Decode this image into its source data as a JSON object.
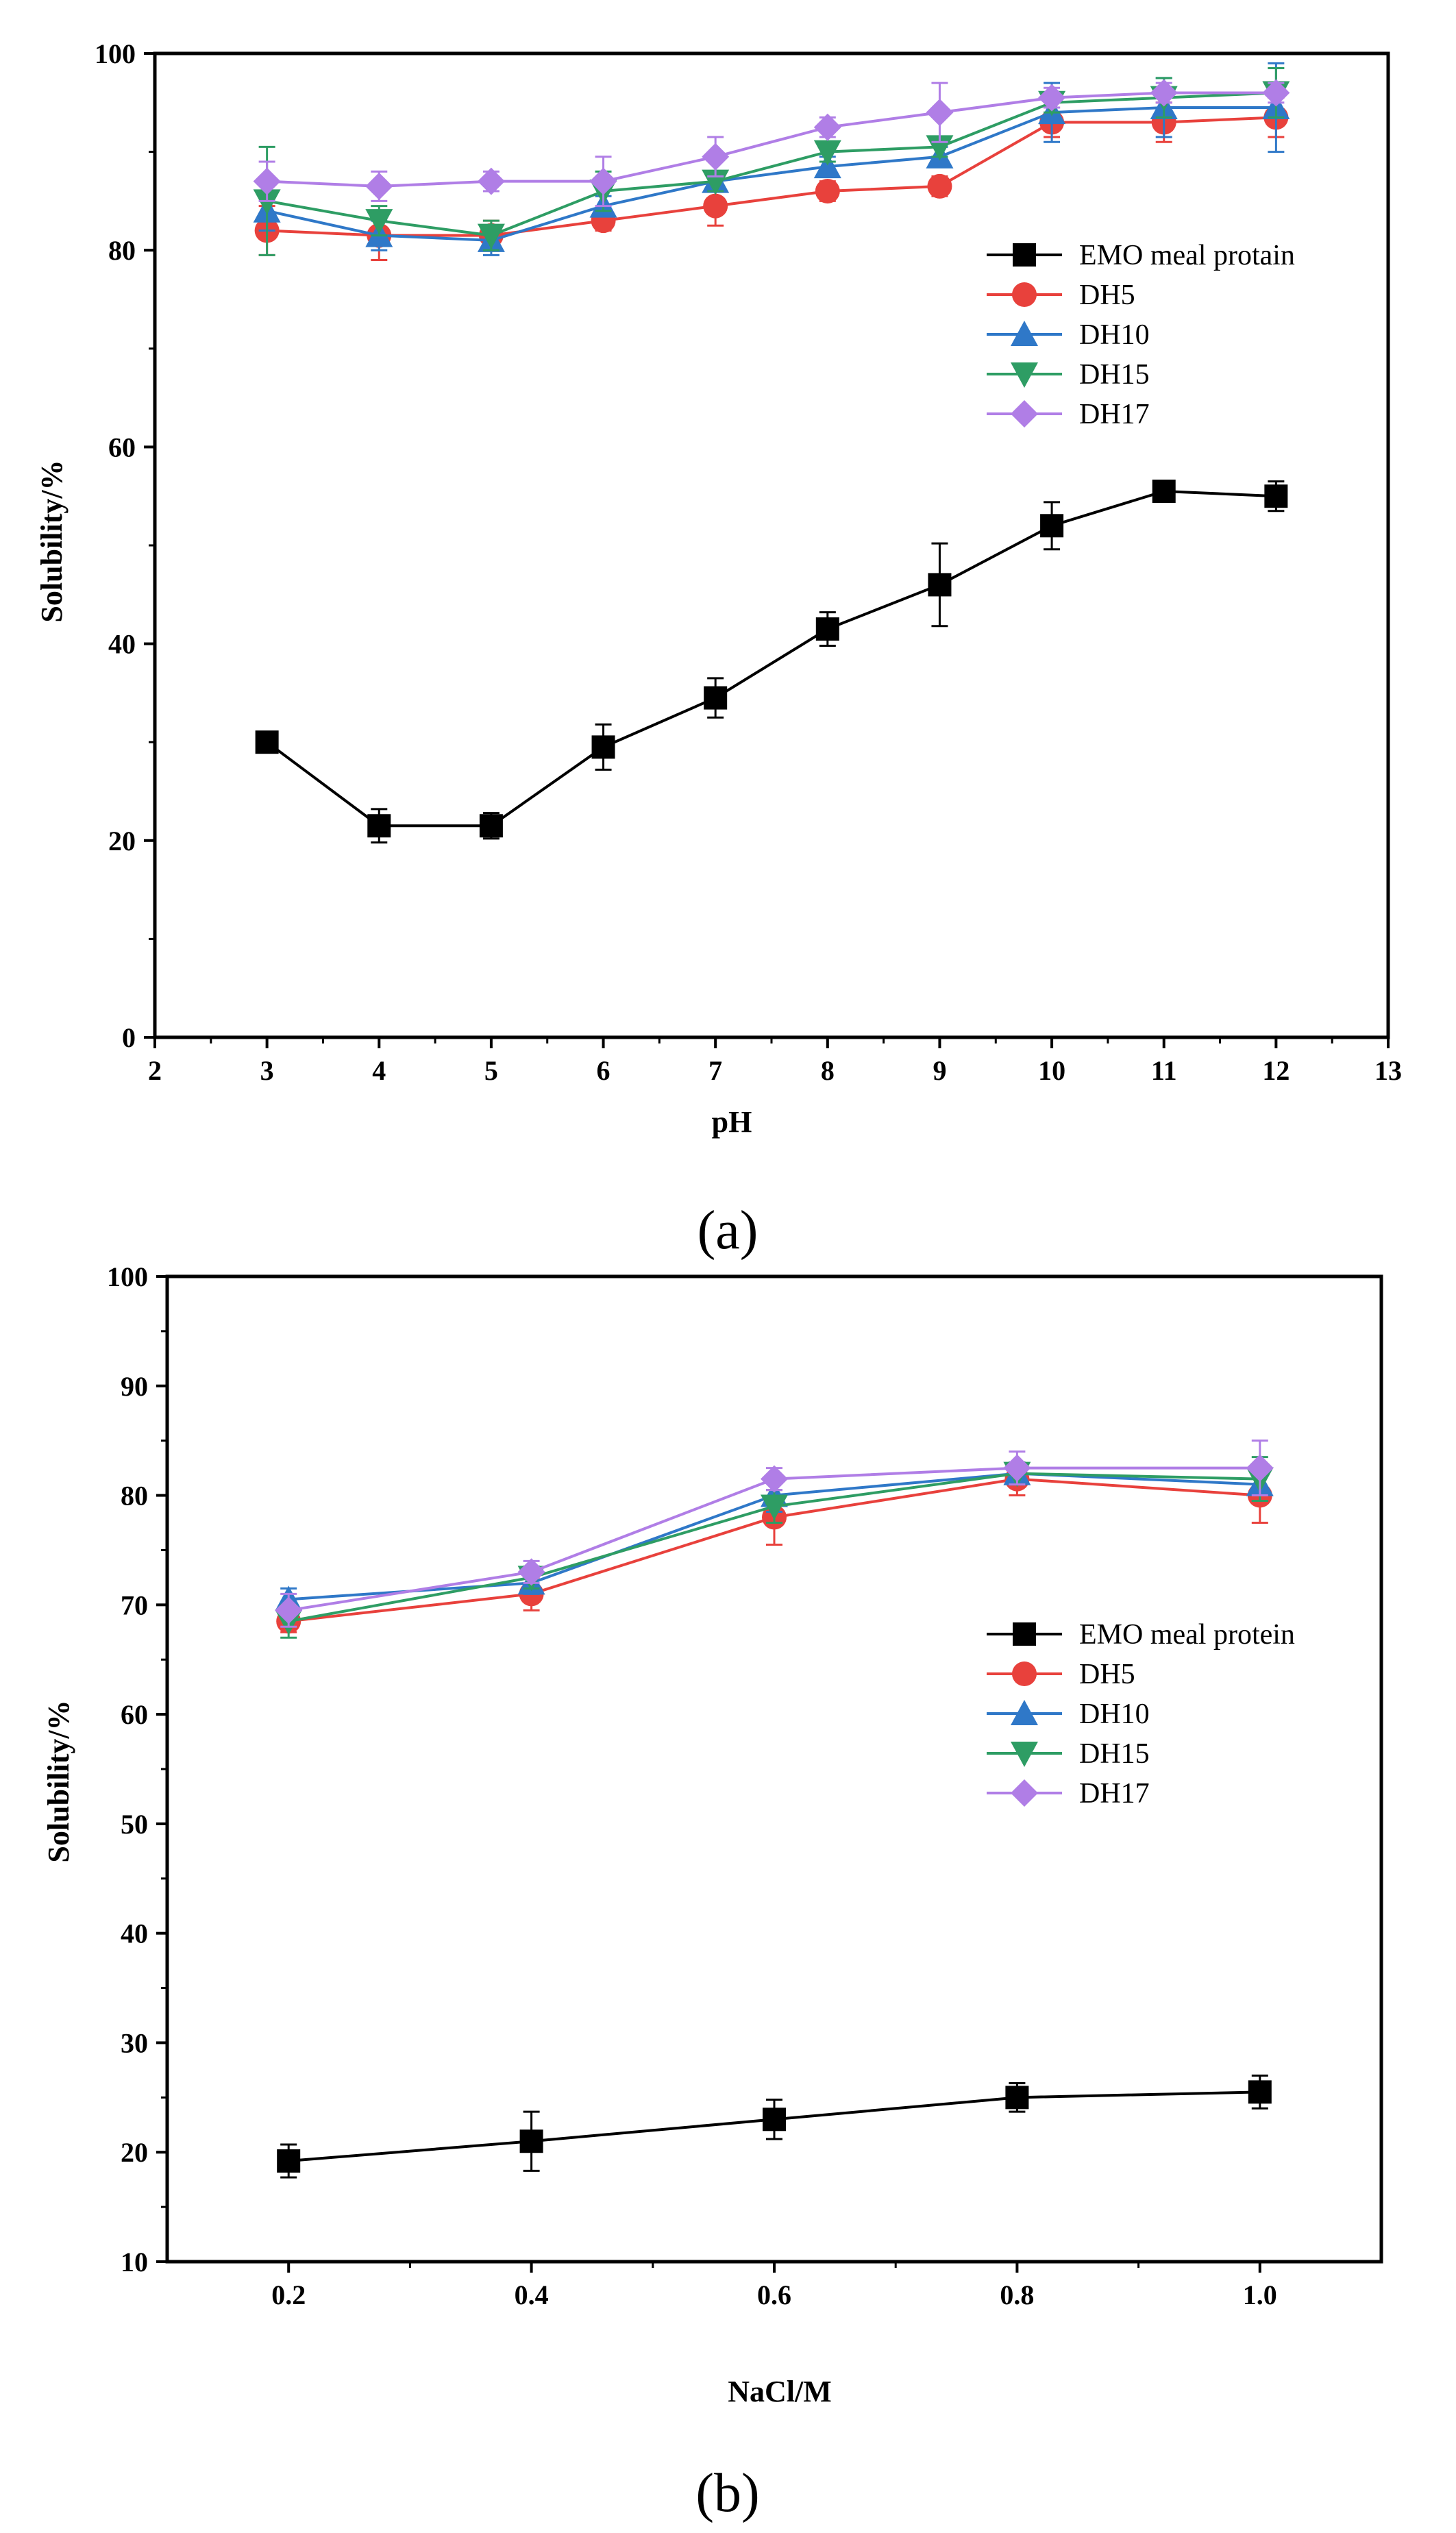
{
  "colors": {
    "EMO": "#000000",
    "DH5": "#e8413c",
    "DH10": "#2f78c8",
    "DH15": "#2e9d64",
    "DH17": "#b07ee6"
  },
  "chart_data": [
    {
      "panel": "(a)",
      "type": "line",
      "xlabel": "pH",
      "ylabel": "Solubility/%",
      "xlim": [
        2,
        13
      ],
      "ylim": [
        0,
        100
      ],
      "xticks": [
        2,
        3,
        4,
        5,
        6,
        7,
        8,
        9,
        10,
        11,
        12,
        13
      ],
      "yticks": [
        0,
        20,
        40,
        60,
        80,
        100
      ],
      "x": [
        3,
        4,
        5,
        6,
        7,
        8,
        9,
        10,
        11,
        12
      ],
      "legend_position": "upper-right",
      "series": [
        {
          "name": "EMO meal protain",
          "key": "EMO",
          "marker": "square",
          "values": [
            30,
            21.5,
            21.5,
            29.5,
            34.5,
            41.5,
            46,
            52,
            55.5,
            55
          ],
          "errors": [
            1,
            1.7,
            1.3,
            2.3,
            2,
            1.7,
            4.2,
            2.4,
            1,
            1.5
          ]
        },
        {
          "name": "DH5",
          "key": "DH5",
          "marker": "circle",
          "values": [
            82,
            81.5,
            81.5,
            83,
            84.5,
            86,
            86.5,
            93,
            93,
            93.5
          ],
          "errors": [
            2.5,
            2.5,
            1.5,
            1,
            2,
            1,
            1,
            1.5,
            2,
            2
          ]
        },
        {
          "name": "DH10",
          "key": "DH10",
          "marker": "triangle-up",
          "values": [
            84,
            81.5,
            81,
            84.5,
            87,
            88.5,
            89.5,
            94,
            94.5,
            94.5
          ],
          "errors": [
            2,
            1.5,
            1.5,
            1,
            1,
            1,
            1,
            3,
            3,
            4.5
          ]
        },
        {
          "name": "DH15",
          "key": "DH15",
          "marker": "triangle-down",
          "values": [
            85,
            83,
            81.5,
            86,
            87,
            90,
            90.5,
            95,
            95.5,
            96
          ],
          "errors": [
            5.5,
            1.5,
            1.5,
            2,
            1,
            1,
            1,
            1,
            2,
            2.5
          ]
        },
        {
          "name": "DH17",
          "key": "DH17",
          "marker": "diamond",
          "values": [
            87,
            86.5,
            87,
            87,
            89.5,
            92.5,
            94,
            95.5,
            96,
            96
          ],
          "errors": [
            2,
            1.5,
            1,
            2.5,
            2,
            1,
            3,
            1,
            1,
            1
          ]
        }
      ]
    },
    {
      "panel": "(b)",
      "type": "line",
      "xlabel": "NaCl/M",
      "ylabel": "Solubility/%",
      "xlim": [
        0.1,
        1.1
      ],
      "ylim": [
        10,
        100
      ],
      "xticks": [
        0.2,
        0.4,
        0.6,
        0.8,
        1.0
      ],
      "xtick_labels": [
        "0.2",
        "0.4",
        "0.6",
        "0.8",
        "1.0"
      ],
      "yticks": [
        10,
        20,
        30,
        40,
        50,
        60,
        70,
        80,
        90,
        100
      ],
      "x": [
        0.2,
        0.4,
        0.6,
        0.8,
        1.0
      ],
      "legend_position": "right",
      "series": [
        {
          "name": "EMO meal protein",
          "key": "EMO",
          "marker": "square",
          "values": [
            19.2,
            21,
            23,
            25,
            25.5
          ],
          "errors": [
            1.5,
            2.7,
            1.8,
            1.3,
            1.5
          ]
        },
        {
          "name": "DH5",
          "key": "DH5",
          "marker": "circle",
          "values": [
            68.5,
            71,
            78,
            81.5,
            80
          ],
          "errors": [
            1,
            1.5,
            2.5,
            1.5,
            2.5
          ]
        },
        {
          "name": "DH10",
          "key": "DH10",
          "marker": "triangle-up",
          "values": [
            70.5,
            72,
            80,
            82,
            81
          ],
          "errors": [
            1,
            1,
            1.5,
            1,
            1.5
          ]
        },
        {
          "name": "DH15",
          "key": "DH15",
          "marker": "triangle-down",
          "values": [
            68.5,
            72.5,
            79,
            82,
            81.5
          ],
          "errors": [
            1.5,
            1,
            1.5,
            1,
            2
          ]
        },
        {
          "name": "DH17",
          "key": "DH17",
          "marker": "diamond",
          "values": [
            69.5,
            73,
            81.5,
            82.5,
            82.5
          ],
          "errors": [
            1.5,
            1,
            1,
            1.5,
            2.5
          ]
        }
      ]
    }
  ]
}
